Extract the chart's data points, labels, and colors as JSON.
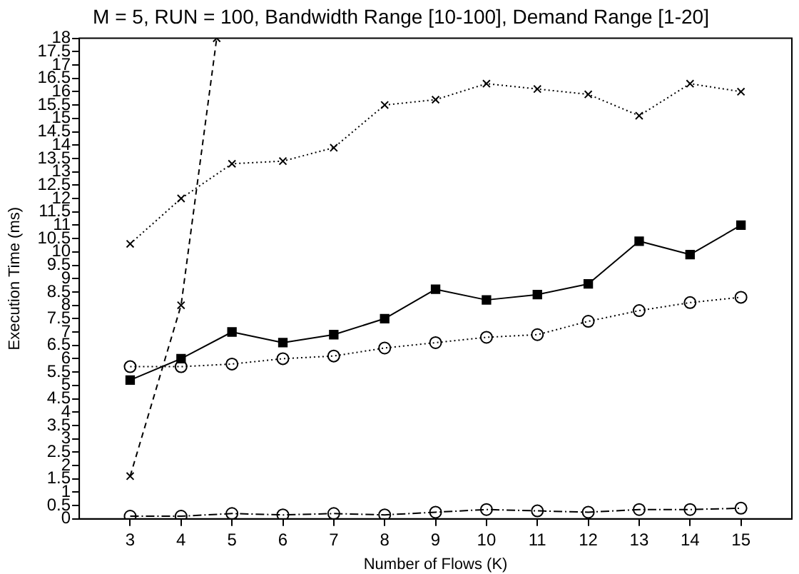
{
  "chart_data": {
    "type": "line",
    "title": "M = 5, RUN = 100, Bandwidth Range [10-100], Demand Range [1-20]",
    "xlabel": "Number of Flows (K)",
    "ylabel": "Execution Time (ms)",
    "x": [
      3,
      4,
      5,
      6,
      7,
      8,
      9,
      10,
      11,
      12,
      13,
      14,
      15
    ],
    "xlim": [
      2,
      16
    ],
    "xticks": [
      3,
      4,
      5,
      6,
      7,
      8,
      9,
      10,
      11,
      12,
      13,
      14,
      15
    ],
    "ylim": [
      0,
      18
    ],
    "yticks": [
      0,
      0.5,
      1,
      1.5,
      2,
      2.5,
      3,
      3.5,
      4,
      4.5,
      5,
      5.5,
      6,
      6.5,
      7,
      7.5,
      8,
      8.5,
      9,
      9.5,
      10,
      10.5,
      11,
      11.5,
      12,
      12.5,
      13,
      13.5,
      14,
      14.5,
      15,
      15.5,
      16,
      16.5,
      17,
      17.5,
      18
    ],
    "grid": false,
    "legend": false,
    "series": [
      {
        "color": "#000000",
        "marker": "cross",
        "line_style": "dotted",
        "values": [
          10.3,
          12.0,
          13.3,
          13.4,
          13.9,
          15.5,
          15.7,
          16.3,
          16.1,
          15.9,
          15.1,
          16.3,
          16.0
        ]
      },
      {
        "color": "#000000",
        "marker": "cross",
        "line_style": "dashed",
        "x": [
          3,
          4,
          4.7
        ],
        "values": [
          1.6,
          8.0,
          18
        ]
      },
      {
        "color": "#000000",
        "marker": "square",
        "line_style": "solid",
        "values": [
          5.2,
          6.0,
          7.0,
          6.6,
          6.9,
          7.5,
          8.6,
          8.2,
          8.4,
          8.8,
          10.4,
          9.9,
          11.0
        ]
      },
      {
        "color": "#000000",
        "marker": "circle",
        "line_style": "dotted",
        "values": [
          5.7,
          5.7,
          5.8,
          6.0,
          6.1,
          6.4,
          6.6,
          6.8,
          6.9,
          7.4,
          7.8,
          8.1,
          8.3
        ]
      },
      {
        "color": "#000000",
        "marker": "circle",
        "line_style": "dashdot",
        "values": [
          0.1,
          0.1,
          0.2,
          0.15,
          0.2,
          0.15,
          0.25,
          0.35,
          0.3,
          0.25,
          0.35,
          0.35,
          0.4
        ]
      }
    ]
  }
}
